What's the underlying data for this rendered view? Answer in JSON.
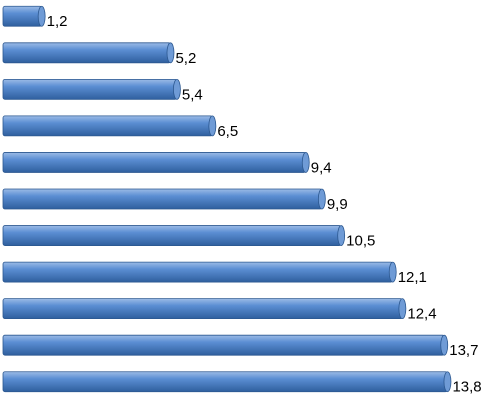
{
  "chart_data": {
    "type": "bar",
    "orientation": "horizontal",
    "categories": [
      null,
      null,
      null,
      null,
      null,
      null,
      null,
      null,
      null,
      null,
      null
    ],
    "values": [
      1.2,
      5.2,
      5.4,
      6.5,
      9.4,
      9.9,
      10.5,
      12.1,
      12.4,
      13.7,
      13.8
    ],
    "value_labels": [
      "1,2",
      "5,2",
      "5,4",
      "6,5",
      "9,4",
      "9,9",
      "10,5",
      "12,1",
      "12,4",
      "13,7",
      "13,8"
    ],
    "color": "#4a7ebb",
    "xlim": [
      0,
      14.5
    ]
  }
}
